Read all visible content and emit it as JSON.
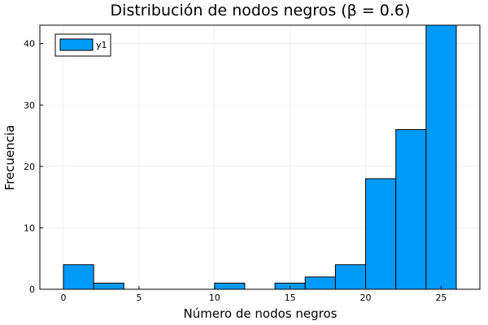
{
  "chart_data": {
    "type": "bar",
    "title": "Distribución de nodos negros (β = 0.6)",
    "xlabel": "Número de nodos negros",
    "ylabel": "Frecuencia",
    "xlim": [
      -1.56,
      27.56
    ],
    "ylim": [
      0,
      43
    ],
    "xticks": [
      0,
      5,
      10,
      15,
      20,
      25
    ],
    "yticks": [
      0,
      10,
      20,
      30,
      40
    ],
    "grid": true,
    "legend": {
      "position": "top-left",
      "entries": [
        "y1"
      ]
    },
    "color": "#009af9",
    "series": [
      {
        "name": "y1",
        "bins": [
          {
            "x0": 0,
            "x1": 2,
            "count": 4
          },
          {
            "x0": 2,
            "x1": 4,
            "count": 1
          },
          {
            "x0": 10,
            "x1": 12,
            "count": 1
          },
          {
            "x0": 14,
            "x1": 16,
            "count": 1
          },
          {
            "x0": 16,
            "x1": 18,
            "count": 2
          },
          {
            "x0": 18,
            "x1": 20,
            "count": 4
          },
          {
            "x0": 20,
            "x1": 22,
            "count": 18
          },
          {
            "x0": 22,
            "x1": 24,
            "count": 26
          },
          {
            "x0": 24,
            "x1": 26,
            "count": 43
          }
        ]
      }
    ]
  }
}
